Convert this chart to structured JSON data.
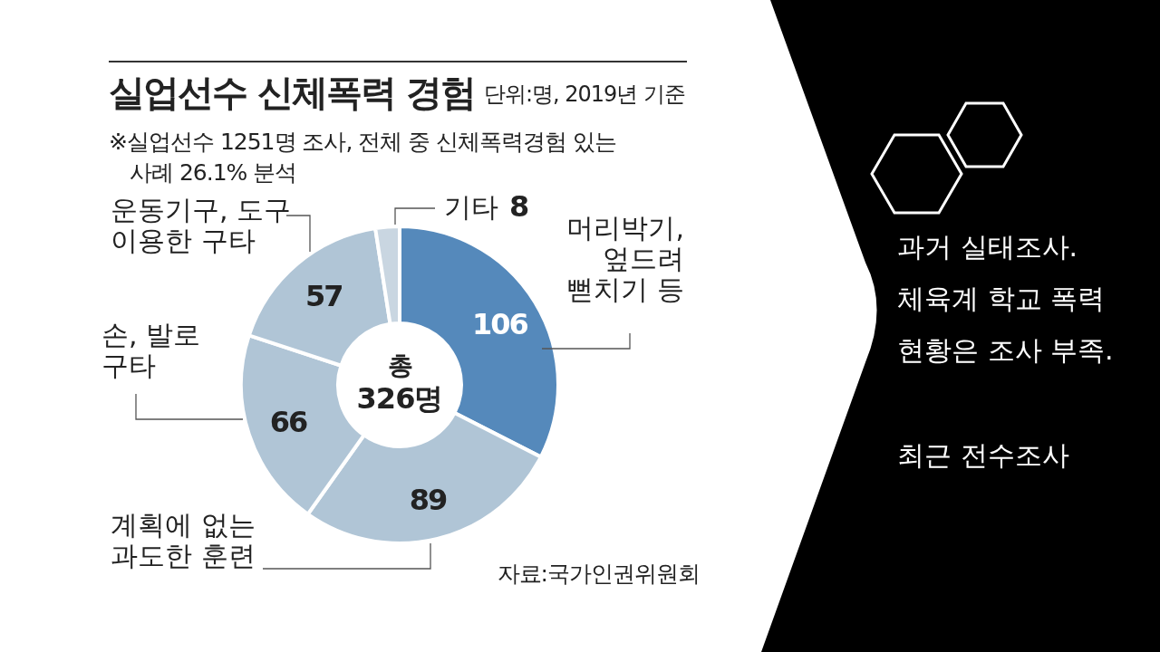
{
  "chart_data": {
    "type": "donut",
    "title": "실업선수 신체폭력 경험",
    "subtitle": "단위:명, 2019년 기준",
    "categories": [
      "머리박기, 엎드려 뻗치기 등",
      "계획에 없는 과도한 훈련",
      "손, 발로 구타",
      "운동기구, 도구 이용한 구타",
      "기타"
    ],
    "values": [
      106,
      89,
      66,
      57,
      8
    ],
    "colors": [
      "#5589bb",
      "#b0c5d6",
      "#b0c5d6",
      "#b0c5d6",
      "#c9d6e1"
    ],
    "data_labels": true,
    "annotations": [
      "※실업선수 1251명 조사, 전체 중 신체폭력경험 있는 사례 26.1% 분석",
      "자료:국가인권위원회",
      "총 326명",
      "과거 실태조사.",
      "체육계 학교 폭력 현황은 조사 부족.",
      "최근 전수조사"
    ]
  }
}
